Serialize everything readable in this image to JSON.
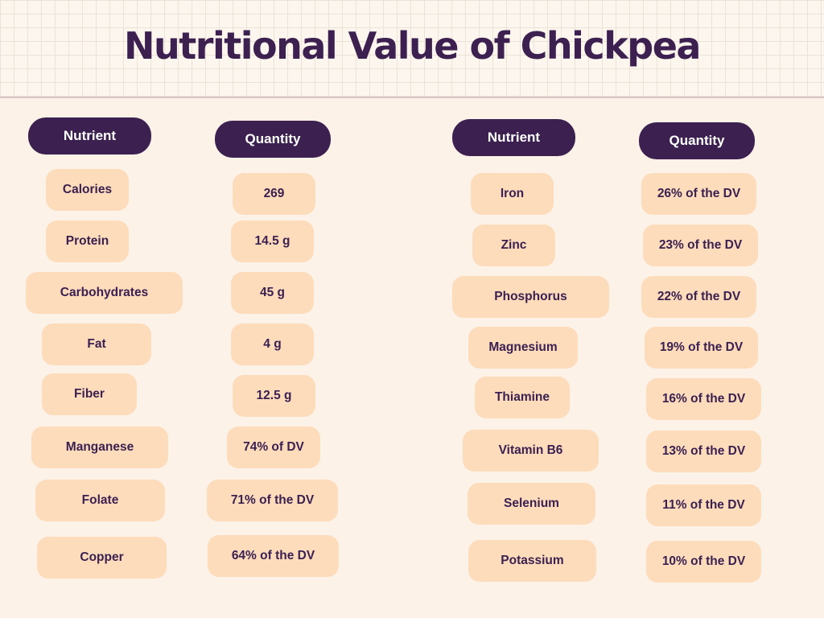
{
  "title": "Nutritional Value of Chickpea",
  "headers": {
    "nutrient": "Nutrient",
    "quantity": "Quantity"
  },
  "left": [
    {
      "nutrient": "Calories",
      "quantity": "269"
    },
    {
      "nutrient": "Protein",
      "quantity": "14.5 g"
    },
    {
      "nutrient": "Carbohydrates",
      "quantity": "45 g"
    },
    {
      "nutrient": "Fat",
      "quantity": "4 g"
    },
    {
      "nutrient": "Fiber",
      "quantity": "12.5 g"
    },
    {
      "nutrient": "Manganese",
      "quantity": "74% of DV"
    },
    {
      "nutrient": "Folate",
      "quantity": "71% of the DV"
    },
    {
      "nutrient": "Copper",
      "quantity": "64% of the DV"
    }
  ],
  "right": [
    {
      "nutrient": "Iron",
      "quantity": "26% of the DV"
    },
    {
      "nutrient": "Zinc",
      "quantity": "23% of the DV"
    },
    {
      "nutrient": "Phosphorus",
      "quantity": "22% of the DV"
    },
    {
      "nutrient": "Magnesium",
      "quantity": "19% of the DV"
    },
    {
      "nutrient": "Thiamine",
      "quantity": "16% of the DV"
    },
    {
      "nutrient": "Vitamin B6",
      "quantity": "13% of the DV"
    },
    {
      "nutrient": "Selenium",
      "quantity": "11% of the DV"
    },
    {
      "nutrient": "Potassium",
      "quantity": "10% of the DV"
    }
  ],
  "colors": {
    "header_bg": "#3b2050",
    "pill_bg": "#fddcbc",
    "page_bg": "#fdf2e8",
    "text": "#3b2050"
  }
}
